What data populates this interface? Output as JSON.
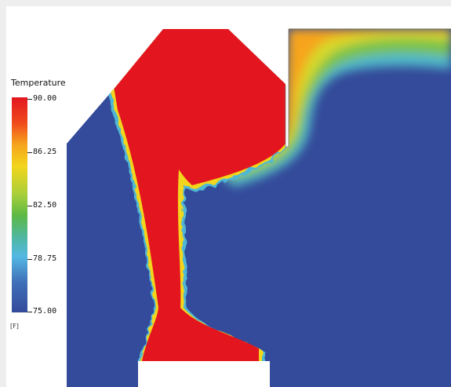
{
  "legend": {
    "title": "Temperature",
    "units": "[F]",
    "ticks": [
      "90.00",
      "86.25",
      "82.50",
      "78.75",
      "75.00"
    ]
  },
  "colors": {
    "background": "#eeeeee",
    "cold": "#344a9a",
    "hot": "#e3161f",
    "colormap": [
      "#e3161f",
      "#f04a1d",
      "#f6a41c",
      "#f2d51c",
      "#a9cf3a",
      "#5cb946",
      "#4fb7a0",
      "#53b8e3",
      "#3f6fb8",
      "#344a9a"
    ]
  }
}
